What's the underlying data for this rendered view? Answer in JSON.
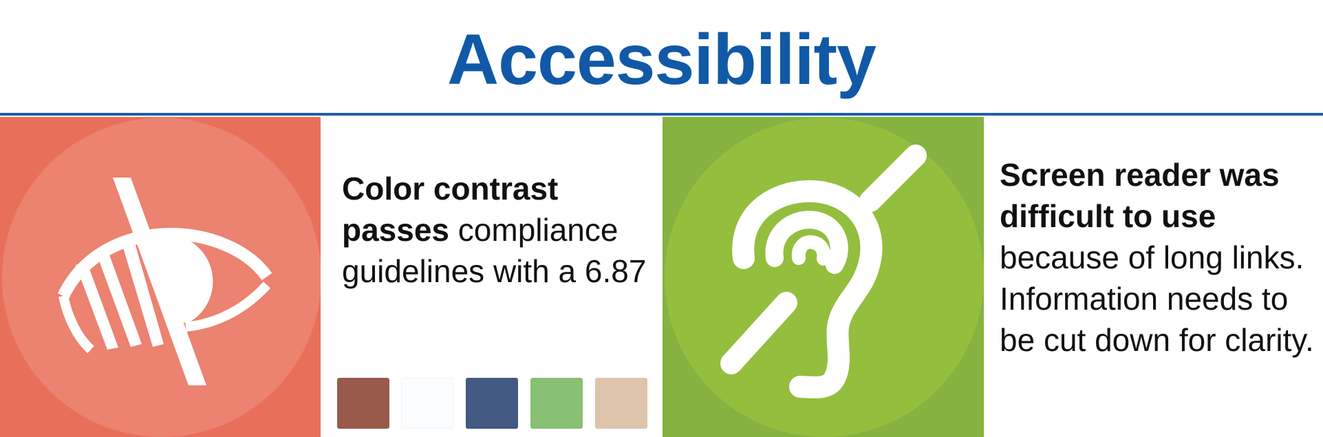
{
  "header": {
    "title": "Accessibility"
  },
  "colors": {
    "title": "#1159a6",
    "rule": "#1f5ea8",
    "vision_panel": "#e8705b",
    "vision_circle": "#ec8270",
    "hearing_panel": "#85b240",
    "hearing_circle": "#94be3e"
  },
  "cards": {
    "contrast": {
      "icon": "low-vision-icon",
      "bold": "Color contrast passes",
      "rest": " compliance guidelines with a 6.87"
    },
    "screen_reader": {
      "icon": "hearing-impaired-icon",
      "bold": "Screen reader was difficult to use",
      "rest": " because of long links. Information needs to be cut down for clarity."
    }
  },
  "palette": [
    "#9a5a4b",
    "#fcfdfe",
    "#415983",
    "#88c074",
    "#ddc4aa"
  ]
}
